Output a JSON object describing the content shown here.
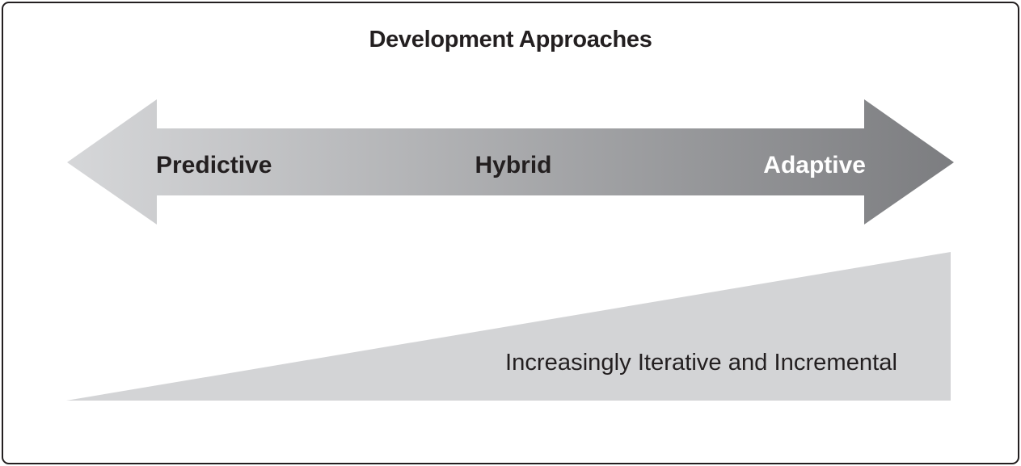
{
  "title": "Development Approaches",
  "arrow": {
    "labels": {
      "predictive": "Predictive",
      "hybrid": "Hybrid",
      "adaptive": "Adaptive"
    },
    "gradient_start": "#d6d7d9",
    "gradient_end": "#7c7d80"
  },
  "wedge": {
    "label": "Increasingly Iterative and Incremental",
    "color": "#d3d4d6"
  },
  "colors": {
    "border": "#231f20",
    "text_dark": "#231f20",
    "text_light": "#ffffff"
  }
}
